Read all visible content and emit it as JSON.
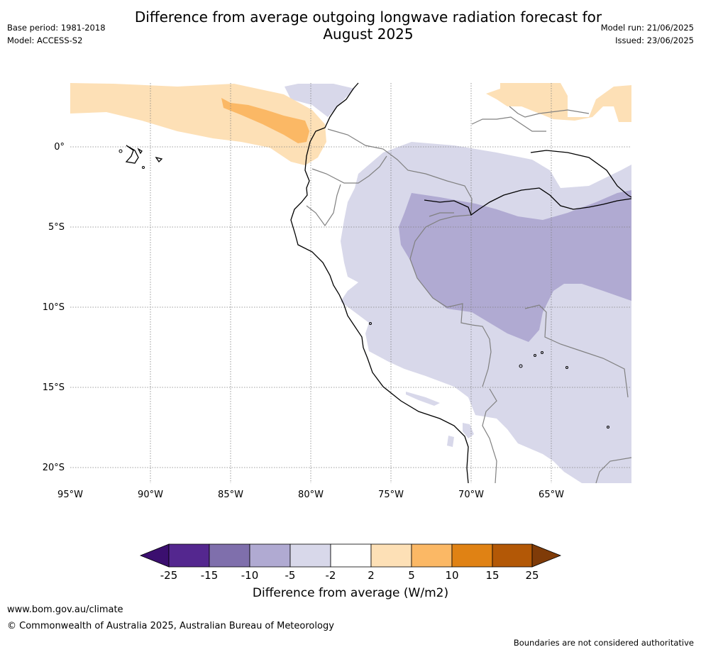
{
  "title_line1": "Difference from average outgoing longwave radiation forecast for",
  "title_line2": "August 2025",
  "meta_left": {
    "base_period": "Base period: 1981-2018",
    "model": "Model: ACCESS-S2"
  },
  "meta_right": {
    "model_run": "Model run: 21/06/2025",
    "issued": "Issued: 23/06/2025"
  },
  "map": {
    "lon_labels": [
      "95°W",
      "90°W",
      "85°W",
      "80°W",
      "75°W",
      "70°W",
      "65°W"
    ],
    "lat_labels": [
      "0°",
      "5°S",
      "10°S",
      "15°S",
      "20°S"
    ],
    "colors": {
      "land_outline": "#000000",
      "border": "#808080",
      "grid": "#808080",
      "neg5": "#d8d8ea",
      "neg10": "#b0aad2",
      "pos5": "#fde0b6",
      "pos10": "#fbb865"
    }
  },
  "colorbar": {
    "labels": [
      "-25",
      "-15",
      "-10",
      "-5",
      "-2",
      "2",
      "5",
      "10",
      "15",
      "25"
    ],
    "colors": [
      "#3b0f6f",
      "#54278f",
      "#7f6fac",
      "#b0aad2",
      "#d8d8ea",
      "#ffffff",
      "#fde0b6",
      "#fbb865",
      "#e08214",
      "#b35806",
      "#7f3b08"
    ],
    "title": "Difference from average (W/m2)"
  },
  "footer": {
    "url": "www.bom.gov.au/climate",
    "copyright": "© Commonwealth of Australia 2025, Australian Bureau of Meteorology",
    "note": "Boundaries are not considered authoritative"
  }
}
